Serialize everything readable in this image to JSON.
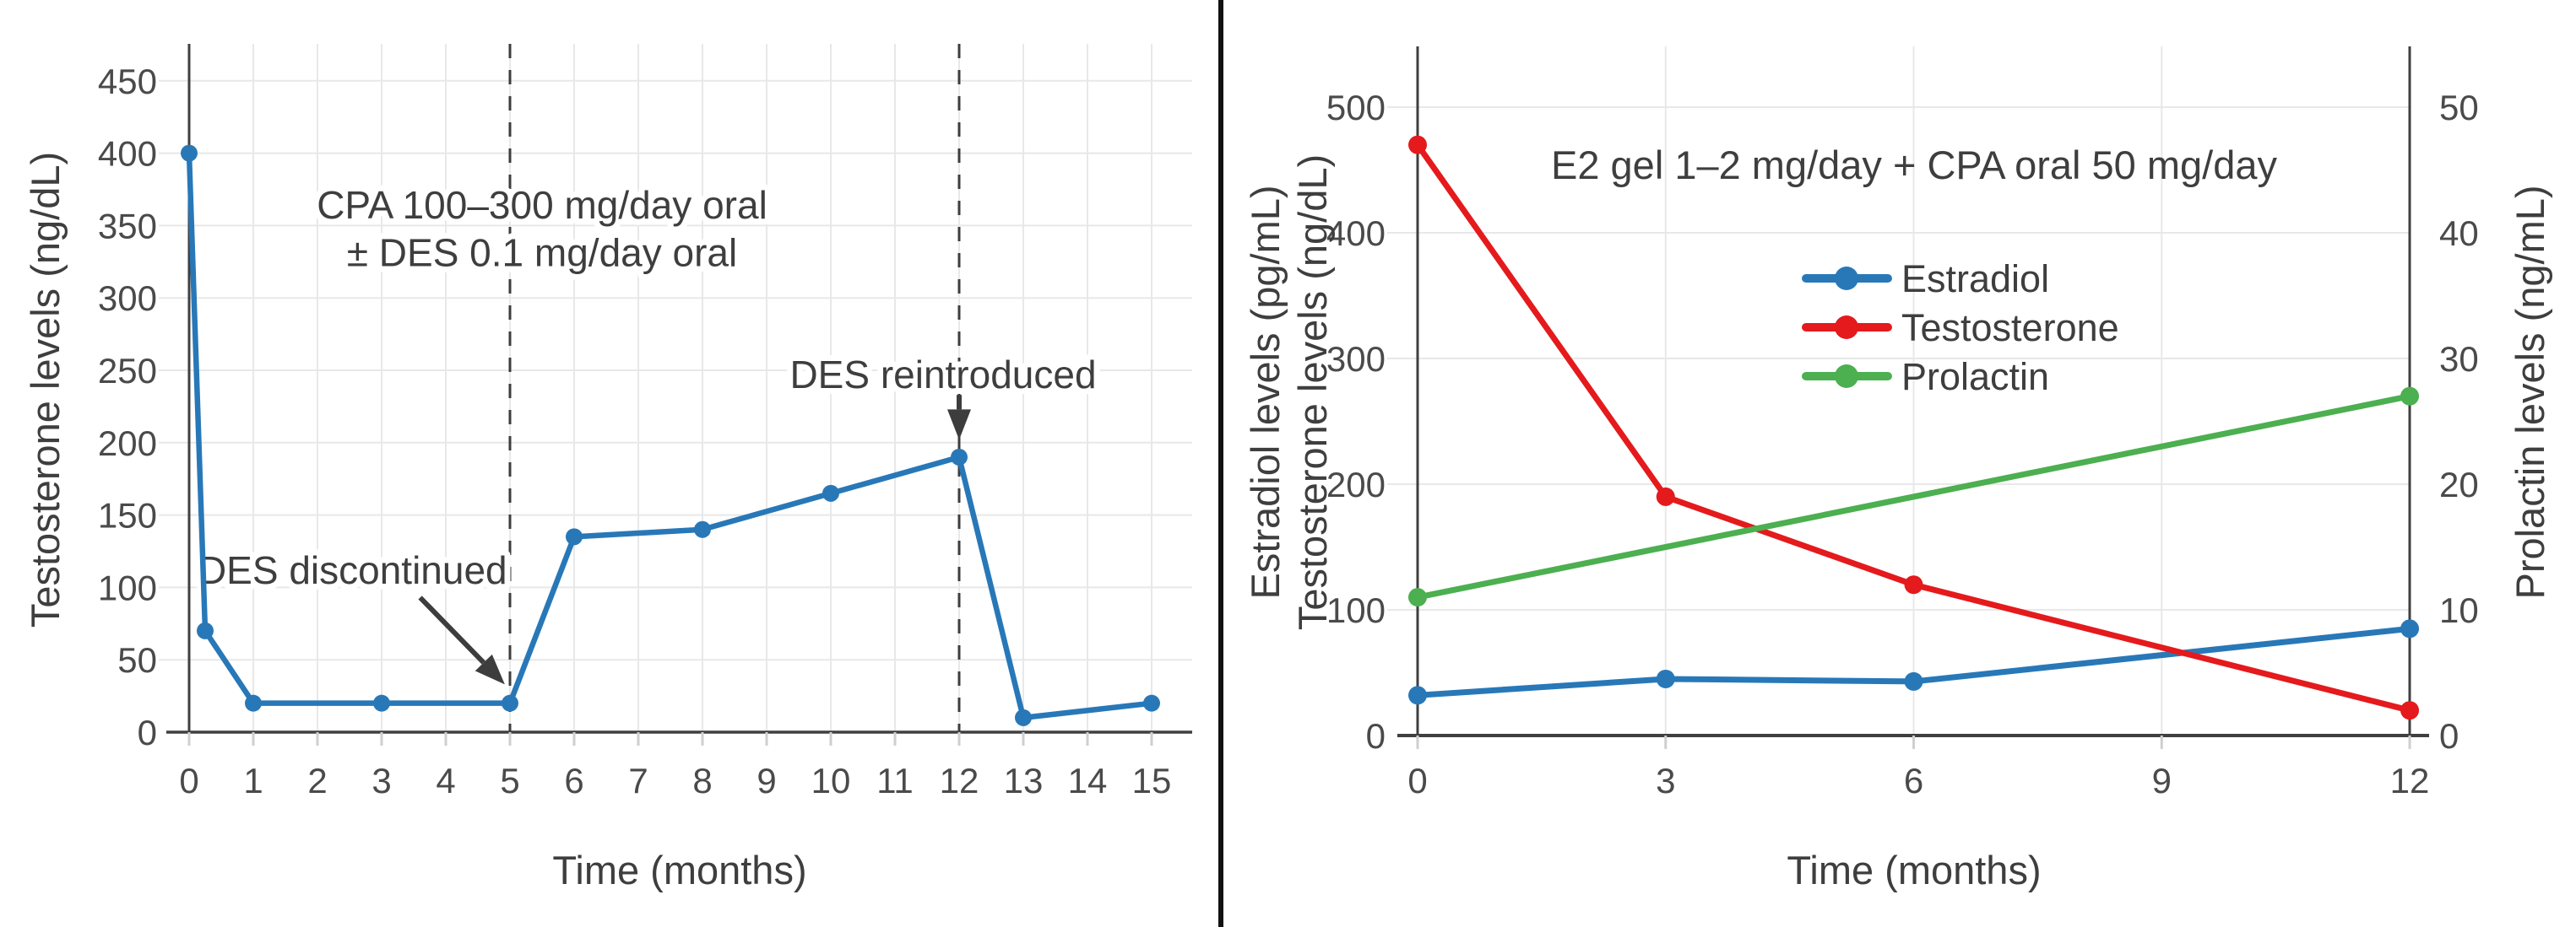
{
  "figure": {
    "background": "#ffffff",
    "divider_color": "#111111",
    "text_color": "#3e3e3e",
    "tick_text_color": "#4a4a4a",
    "spine_color": "#3f3f3f",
    "grid_color": "#e8e8e8",
    "dashed_line_color": "#3d3d3d"
  },
  "chart_data": [
    {
      "type": "line",
      "panel": "left",
      "xlabel": "Time (months)",
      "ylabel": "Testosterone levels (ng/dL)",
      "x_ticks": [
        0,
        1,
        2,
        3,
        4,
        5,
        6,
        7,
        8,
        9,
        10,
        11,
        12,
        13,
        14,
        15
      ],
      "y_ticks": [
        0,
        50,
        100,
        150,
        200,
        250,
        300,
        350,
        400,
        450
      ],
      "xlim": [
        -0.35,
        15.6
      ],
      "ylim": [
        0,
        476
      ],
      "grid": true,
      "legend_position": "none",
      "series": [
        {
          "name": "Testosterone",
          "color": "#2878b8",
          "x": [
            0,
            0.25,
            1,
            3,
            5,
            6,
            8,
            10,
            12,
            13,
            15
          ],
          "y": [
            400,
            70,
            20,
            20,
            20,
            135,
            140,
            165,
            190,
            10,
            20
          ]
        }
      ],
      "dashed_vlines": [
        5,
        12
      ],
      "annotation_box": {
        "lines": [
          "CPA 100–300 mg/day oral",
          "± DES 0.1 mg/day oral"
        ],
        "x": 5.5,
        "line_y": [
          355,
          322
        ]
      },
      "callouts": [
        {
          "text": "DES discontinued",
          "x": 2.55,
          "y": 112,
          "arrow_from": [
            3.6,
            93
          ],
          "arrow_to": [
            4.92,
            33
          ]
        },
        {
          "text": "DES reintroduced",
          "x": 11.75,
          "y": 247,
          "arrow_from": [
            12,
            233
          ],
          "arrow_to": [
            12,
            202
          ]
        }
      ]
    },
    {
      "type": "line",
      "panel": "right",
      "title": "E2 gel 1–2 mg/day + CPA oral 50 mg/day",
      "xlabel": "Time (months)",
      "ylabel_left_lines": [
        "Estradiol levels (pg/mL)",
        "Testosterone levels (ng/dL)"
      ],
      "ylabel_right": "Prolactin levels (ng/mL)",
      "x_ticks": [
        0,
        3,
        6,
        9,
        12
      ],
      "y_ticks_left": [
        0,
        100,
        200,
        300,
        400,
        500
      ],
      "y_ticks_right": [
        0,
        10,
        20,
        30,
        40,
        50
      ],
      "xlim": [
        0,
        12
      ],
      "ylim_left": [
        0,
        548
      ],
      "ylim_right": [
        0,
        54.8
      ],
      "grid": true,
      "legend": {
        "position": "inside-upper-center",
        "items": [
          "Estradiol",
          "Testosterone",
          "Prolactin"
        ]
      },
      "series": [
        {
          "name": "Estradiol",
          "axis": "left",
          "color": "#2878b8",
          "x": [
            0,
            3,
            6,
            12
          ],
          "y": [
            32,
            45,
            43,
            85
          ]
        },
        {
          "name": "Testosterone",
          "axis": "left",
          "color": "#e41a1c",
          "x": [
            0,
            3,
            6,
            12
          ],
          "y": [
            470,
            190,
            120,
            20
          ]
        },
        {
          "name": "Prolactin",
          "axis": "right",
          "color": "#4caf50",
          "x": [
            0,
            12
          ],
          "y": [
            11,
            27
          ]
        }
      ]
    }
  ]
}
